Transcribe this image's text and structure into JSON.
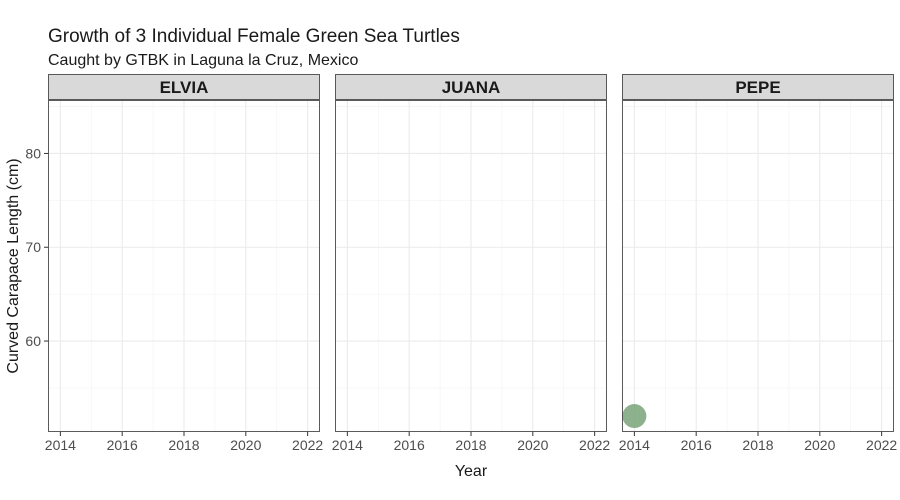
{
  "chart_data": {
    "type": "scatter",
    "title": "Growth of 3 Individual Female Green Sea Turtles",
    "subtitle": "Caught by GTBK in Laguna la Cruz, Mexico",
    "xlabel": "Year",
    "ylabel": "Curved Carapace Length (cm)",
    "xlim": [
      2013.6,
      2022.4
    ],
    "ylim": [
      50.3,
      85.7
    ],
    "x_ticks": [
      2014,
      2016,
      2018,
      2020,
      2022
    ],
    "y_ticks": [
      60,
      70,
      80
    ],
    "grid": true,
    "point_color": "#7fa87f",
    "facets": [
      {
        "label": "ELVIA",
        "points": []
      },
      {
        "label": "JUANA",
        "points": []
      },
      {
        "label": "PEPE",
        "points": [
          {
            "x": 2014,
            "y": 52
          }
        ]
      }
    ]
  }
}
